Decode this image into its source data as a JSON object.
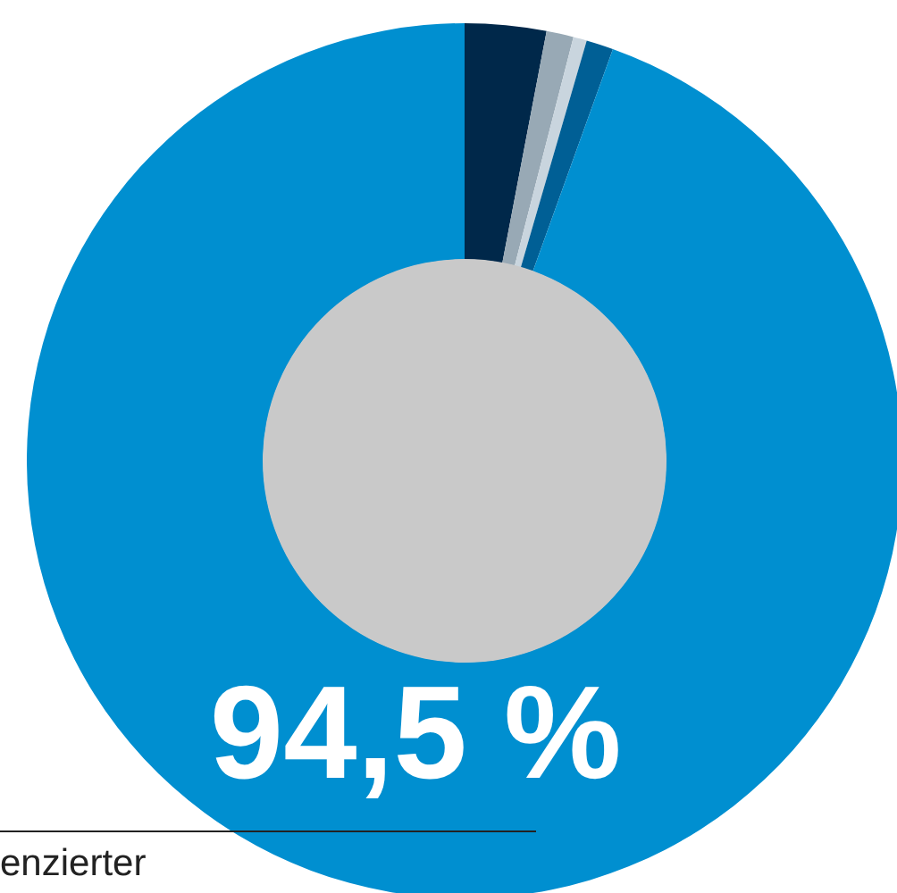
{
  "chart_data": {
    "type": "donut",
    "categories": [
      null,
      null,
      null,
      null,
      null
    ],
    "values": [
      3,
      1,
      0.5,
      1,
      94.5
    ],
    "colors": [
      "#00284a",
      "#98a9b5",
      "#c9d5de",
      "#005f95",
      "#008fd0"
    ],
    "value_labels": [
      null,
      null,
      null,
      null,
      "94,5 %"
    ],
    "annotations": [
      "enzierter"
    ],
    "legend": false
  }
}
